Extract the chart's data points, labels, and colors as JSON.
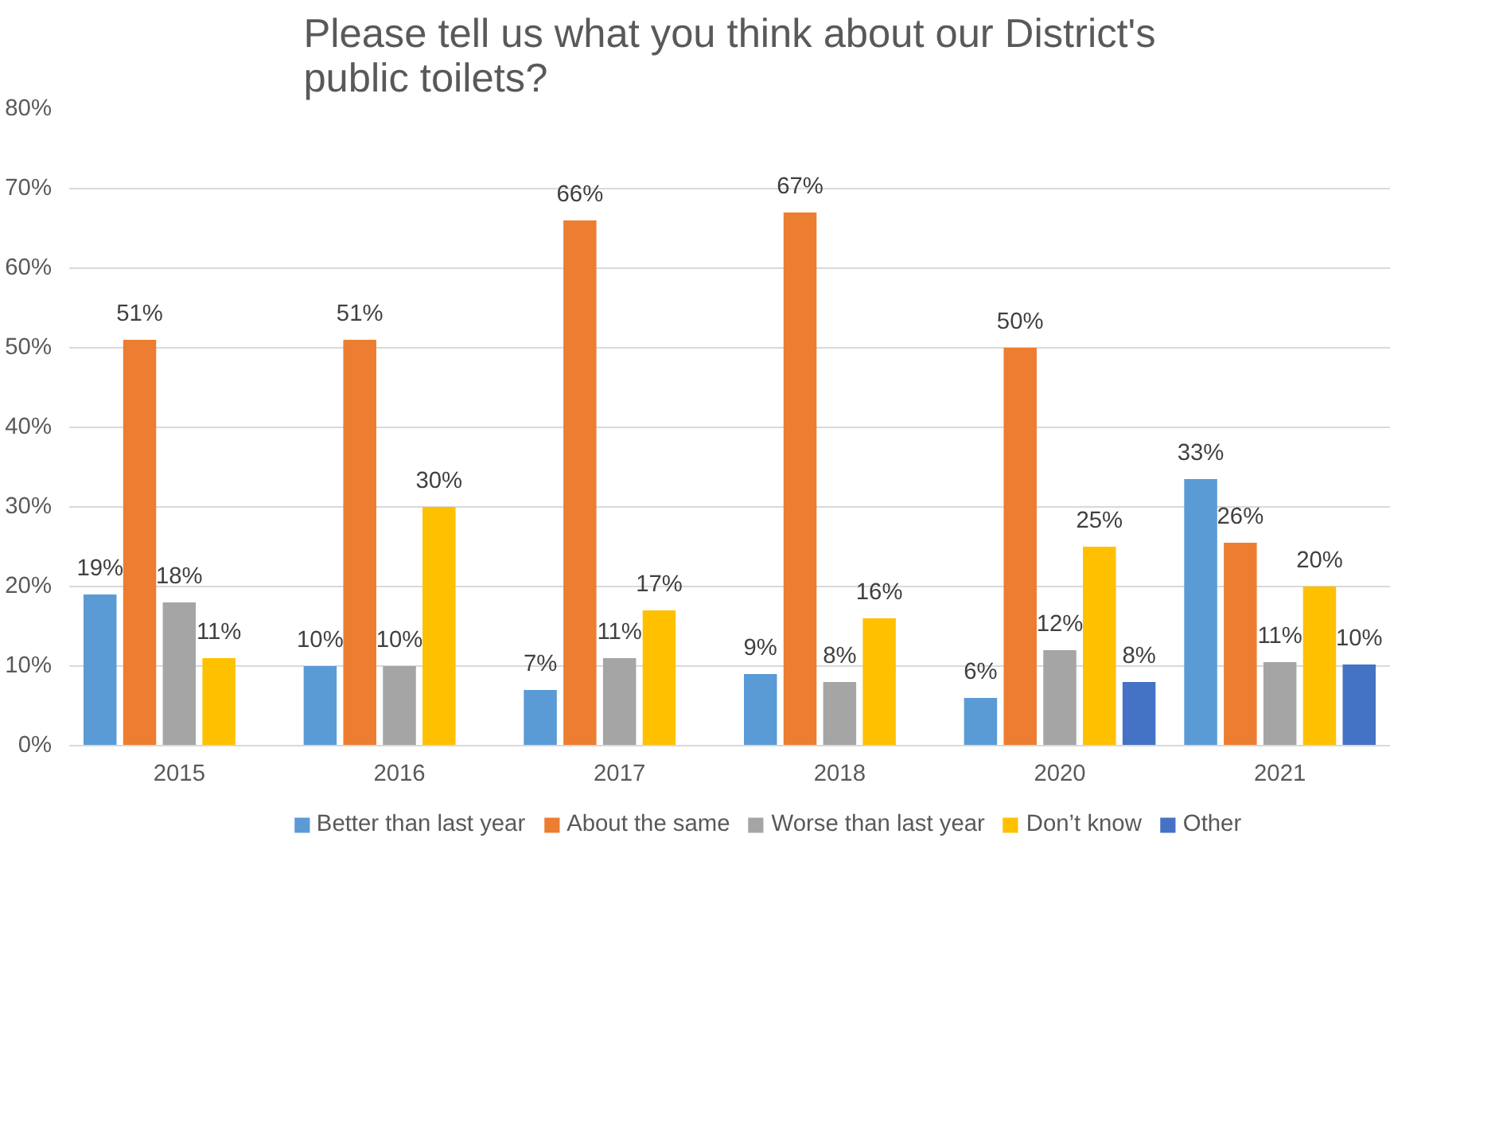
{
  "chart_data": {
    "type": "bar",
    "title": "Please tell us what you think about our District's public toilets?",
    "categories": [
      "2015",
      "2016",
      "2017",
      "2018",
      "2020",
      "2021"
    ],
    "series": [
      {
        "name": "Better than last year",
        "color": "#5b9bd5",
        "values": [
          19,
          10,
          7,
          9,
          6,
          33.5
        ],
        "value_labels": [
          "19%",
          "10%",
          "7%",
          "9%",
          "6%",
          "33%"
        ]
      },
      {
        "name": "About the same",
        "color": "#ed7d31",
        "values": [
          51,
          51,
          66,
          67,
          50,
          25.5
        ],
        "value_labels": [
          "51%",
          "51%",
          "66%",
          "67%",
          "50%",
          "26%"
        ]
      },
      {
        "name": "Worse than last year",
        "color": "#a5a5a5",
        "values": [
          18,
          10,
          11,
          8,
          12,
          10.5
        ],
        "value_labels": [
          "18%",
          "10%",
          "11%",
          "8%",
          "12%",
          "11%"
        ]
      },
      {
        "name": "Don’t know",
        "color": "#ffc000",
        "values": [
          11,
          30,
          17,
          16,
          25,
          20
        ],
        "value_labels": [
          "11%",
          "30%",
          "17%",
          "16%",
          "25%",
          "20%"
        ]
      },
      {
        "name": "Other",
        "color": "#4472c4",
        "values": [
          null,
          null,
          null,
          null,
          8,
          10.2
        ],
        "value_labels": [
          null,
          null,
          null,
          null,
          "8%",
          "10%"
        ]
      }
    ],
    "ylim": [
      0,
      80
    ],
    "yticks": [
      {
        "value": 0,
        "label": "0%"
      },
      {
        "value": 10,
        "label": "10%"
      },
      {
        "value": 20,
        "label": "20%"
      },
      {
        "value": 30,
        "label": "30%"
      },
      {
        "value": 40,
        "label": "40%"
      },
      {
        "value": 50,
        "label": "50%"
      },
      {
        "value": 60,
        "label": "60%"
      },
      {
        "value": 70,
        "label": "70%"
      },
      {
        "value": 80,
        "label": "80%"
      }
    ],
    "grid": "y",
    "legend": "bottom"
  }
}
